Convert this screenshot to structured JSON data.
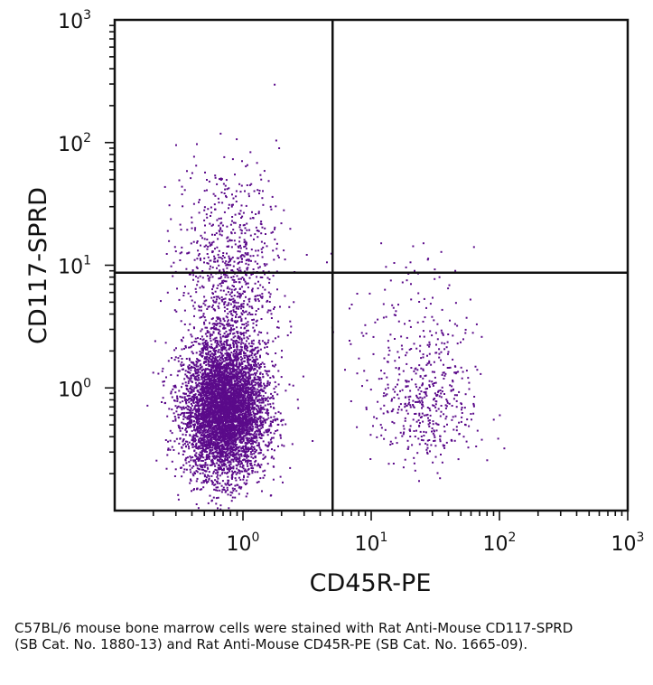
{
  "chart_data": {
    "type": "scatter",
    "xlabel": "CD45R-PE",
    "ylabel": "CD117-SPRD",
    "x_scale": "log",
    "y_scale": "log",
    "xlim": [
      0.1,
      1000
    ],
    "ylim": [
      0.1,
      1000
    ],
    "x_ticks": [
      {
        "base": "10",
        "exp": "0"
      },
      {
        "base": "10",
        "exp": "1"
      },
      {
        "base": "10",
        "exp": "2"
      },
      {
        "base": "10",
        "exp": "3"
      }
    ],
    "y_ticks": [
      {
        "base": "10",
        "exp": "0"
      },
      {
        "base": "10",
        "exp": "1"
      },
      {
        "base": "10",
        "exp": "2"
      },
      {
        "base": "10",
        "exp": "3"
      }
    ],
    "quadrant_gates": {
      "x": 5,
      "y": 8.7
    },
    "point_color": "#5b0a8a",
    "series": [
      {
        "clusters": [
          {
            "x_center": 0.72,
            "y_center": 0.65,
            "x_spread_log": 0.16,
            "y_spread_log": 0.27,
            "count": 5200
          },
          {
            "x_center": 0.8,
            "y_center": 3.5,
            "x_spread_log": 0.18,
            "y_spread_log": 0.45,
            "count": 900
          },
          {
            "x_center": 0.75,
            "y_center": 20,
            "x_spread_log": 0.2,
            "y_spread_log": 0.3,
            "count": 260
          },
          {
            "x_center": 27,
            "y_center": 0.7,
            "x_spread_log": 0.2,
            "y_spread_log": 0.25,
            "count": 420
          },
          {
            "x_center": 20,
            "y_center": 3.5,
            "x_spread_log": 0.25,
            "y_spread_log": 0.3,
            "count": 130
          }
        ]
      }
    ]
  },
  "caption": "C57BL/6 mouse bone marrow cells were stained with Rat Anti-Mouse CD117-SPRD (SB Cat. No. 1880-13) and Rat Anti-Mouse CD45R-PE (SB Cat. No. 1665-09)."
}
